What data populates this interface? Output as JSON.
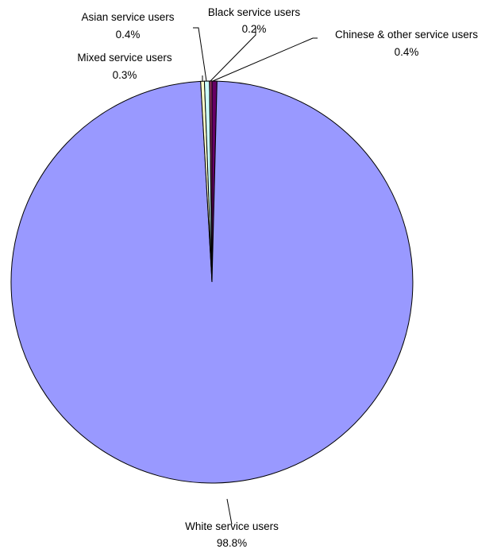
{
  "chart_data": {
    "type": "pie",
    "title": "",
    "start_angle_deg": 0,
    "direction": "clockwise",
    "slices": [
      {
        "label": "Chinese & other service users",
        "value": 0.4,
        "value_label": "0.4%",
        "color": "#660066"
      },
      {
        "label": "White service users",
        "value": 98.8,
        "value_label": "98.8%",
        "color": "#9999ff"
      },
      {
        "label": "Mixed service users",
        "value": 0.3,
        "value_label": "0.3%",
        "color": "#ffffcc"
      },
      {
        "label": "Asian service users",
        "value": 0.4,
        "value_label": "0.4%",
        "color": "#ccffff"
      },
      {
        "label": "Black service users",
        "value": 0.2,
        "value_label": "0.2%",
        "color": "#993366"
      }
    ]
  }
}
